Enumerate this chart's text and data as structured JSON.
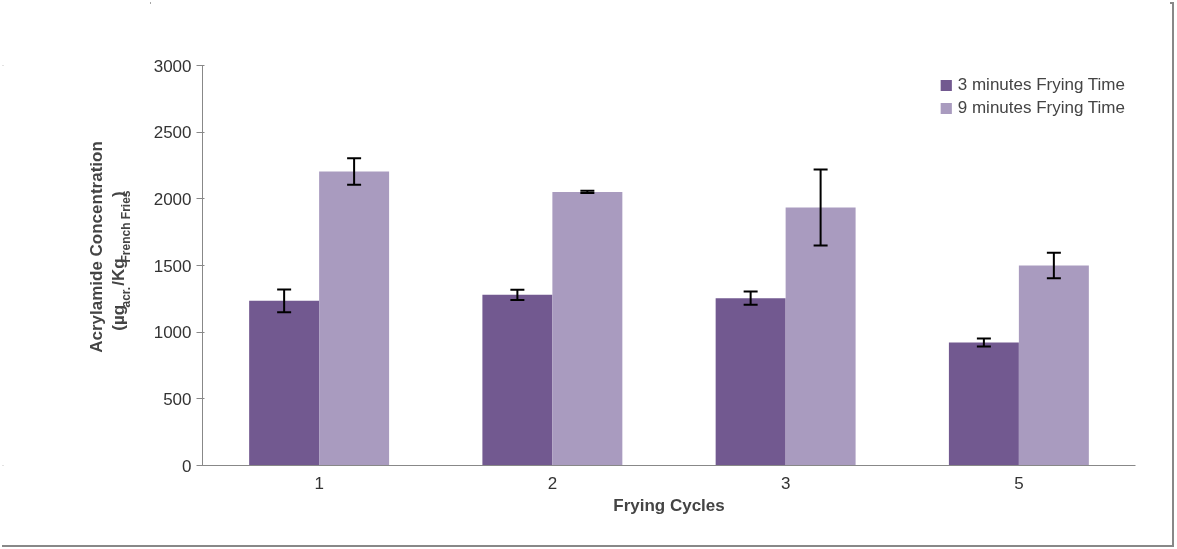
{
  "chart_data": {
    "type": "bar",
    "xlabel": "Frying Cycles",
    "ylabel": "Acrylamide Concentration\n(µg$_{acr.}$/Kg$_{French Fries}$)",
    "categories": [
      "1",
      "2",
      "3",
      "5"
    ],
    "series": [
      {
        "name": "3 minutes Frying Time",
        "color": "#725990",
        "values": [
          1235,
          1280,
          1255,
          922
        ],
        "errors": [
          85,
          38,
          50,
          30
        ]
      },
      {
        "name": "9 minutes Frying Time",
        "color": "#a99bbf",
        "values": [
          2205,
          2052,
          1935,
          1500
        ],
        "errors": [
          100,
          8,
          285,
          95
        ]
      }
    ],
    "ylim": [
      0,
      3000
    ],
    "yticks": [
      0,
      500,
      1000,
      1500,
      2000,
      2500,
      3000
    ],
    "grid": false,
    "legend": "top right"
  }
}
